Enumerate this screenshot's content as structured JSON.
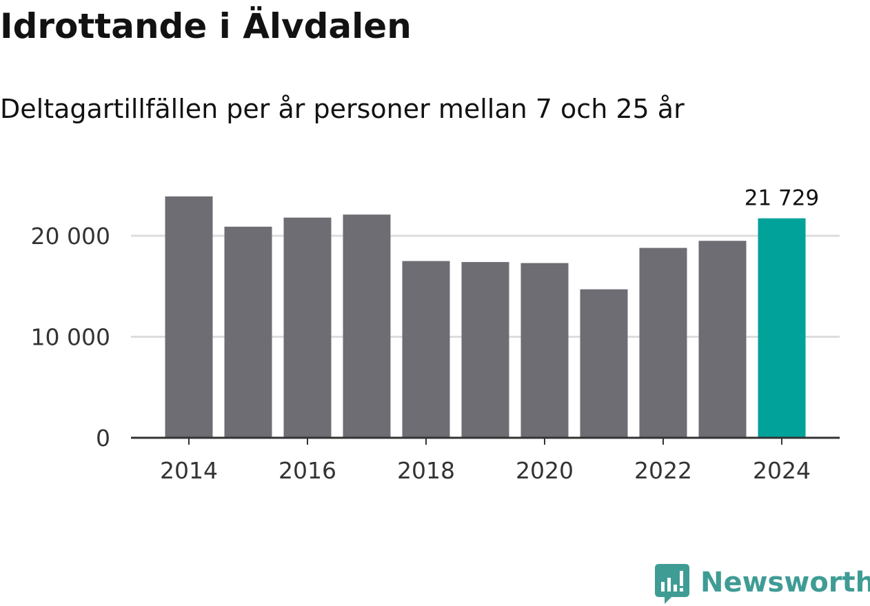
{
  "title": "Idrottande i Älvdalen",
  "subtitle": "Deltagartillfällen per år personer mellan 7 och 25 år",
  "colors": {
    "bar": "#6e6d73",
    "highlight": "#00a29a",
    "grid": "#dddddd",
    "axis": "#333333",
    "text": "#333333",
    "brand": "#3f9c95"
  },
  "chart_data": {
    "type": "bar",
    "title": "Idrottande i Älvdalen",
    "subtitle": "Deltagartillfällen per år personer mellan 7 och 25 år",
    "xlabel": "",
    "ylabel": "",
    "categories": [
      2014,
      2015,
      2016,
      2017,
      2018,
      2019,
      2020,
      2021,
      2022,
      2023,
      2024
    ],
    "values": [
      23900,
      20900,
      21800,
      22100,
      17500,
      17400,
      17300,
      14700,
      18800,
      19500,
      21729
    ],
    "highlight_index": 10,
    "highlight_label": "21 729",
    "ylim": [
      0,
      25000
    ],
    "yticks": [
      0,
      10000,
      20000
    ],
    "ytick_labels": [
      "0",
      "10 000",
      "20 000"
    ],
    "xticks": [
      2014,
      2016,
      2018,
      2020,
      2022,
      2024
    ],
    "xtick_labels": [
      "2014",
      "2016",
      "2018",
      "2020",
      "2022",
      "2024"
    ],
    "grid": true,
    "legend": "none"
  },
  "brand": {
    "name": "Newsworthy",
    "icon": "bar-chart-speech-bubble-icon"
  }
}
